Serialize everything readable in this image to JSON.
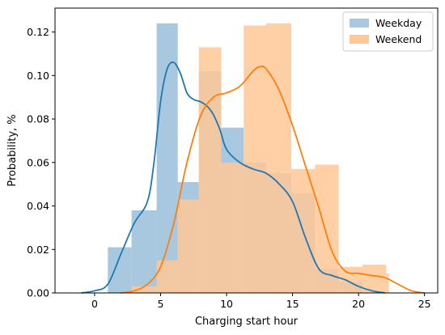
{
  "chart_data": {
    "type": "histogram+kde",
    "title": "",
    "xlabel": "Charging start hour",
    "ylabel": "Probability, %",
    "xlim": [
      -3,
      26
    ],
    "ylim": [
      0,
      0.131
    ],
    "xticks": [
      0,
      5,
      10,
      15,
      20,
      25
    ],
    "yticks": [
      0.0,
      0.02,
      0.04,
      0.06,
      0.08,
      0.1,
      0.12
    ],
    "legend_position": "top-right",
    "series": [
      {
        "name": "Weekday",
        "bar_color": "#a8c8e0",
        "line_color": "#1f77b4",
        "bins": [
          {
            "x0": 1.0,
            "x1": 2.8,
            "value": 0.021
          },
          {
            "x0": 2.8,
            "x1": 4.7,
            "value": 0.038
          },
          {
            "x0": 4.7,
            "x1": 6.3,
            "value": 0.124
          },
          {
            "x0": 6.3,
            "x1": 7.9,
            "value": 0.051
          },
          {
            "x0": 7.9,
            "x1": 9.6,
            "value": 0.102
          },
          {
            "x0": 9.6,
            "x1": 11.3,
            "value": 0.076
          },
          {
            "x0": 11.3,
            "x1": 13.0,
            "value": 0.06
          },
          {
            "x0": 13.0,
            "x1": 14.9,
            "value": 0.055
          },
          {
            "x0": 14.9,
            "x1": 16.7,
            "value": 0.046
          },
          {
            "x0": 16.7,
            "x1": 18.5,
            "value": 0.011
          },
          {
            "x0": 18.5,
            "x1": 20.3,
            "value": 0.005
          }
        ],
        "kde": [
          [
            -1.0,
            0.0
          ],
          [
            0.0,
            0.001
          ],
          [
            1.0,
            0.004
          ],
          [
            2.0,
            0.018
          ],
          [
            3.0,
            0.032
          ],
          [
            4.0,
            0.042
          ],
          [
            4.5,
            0.06
          ],
          [
            5.0,
            0.088
          ],
          [
            5.5,
            0.103
          ],
          [
            6.0,
            0.106
          ],
          [
            6.5,
            0.101
          ],
          [
            7.0,
            0.092
          ],
          [
            7.5,
            0.089
          ],
          [
            8.0,
            0.088
          ],
          [
            8.5,
            0.086
          ],
          [
            9.0,
            0.082
          ],
          [
            9.5,
            0.075
          ],
          [
            10.0,
            0.066
          ],
          [
            11.0,
            0.06
          ],
          [
            12.0,
            0.057
          ],
          [
            13.0,
            0.055
          ],
          [
            14.0,
            0.05
          ],
          [
            15.0,
            0.042
          ],
          [
            16.0,
            0.025
          ],
          [
            17.0,
            0.011
          ],
          [
            18.0,
            0.008
          ],
          [
            19.0,
            0.006
          ],
          [
            20.0,
            0.003
          ],
          [
            21.0,
            0.001
          ],
          [
            22.0,
            0.0
          ]
        ]
      },
      {
        "name": "Weekend",
        "bar_color": "#ffc896",
        "line_color": "#ff7f0e",
        "bins": [
          {
            "x0": 2.8,
            "x1": 4.7,
            "value": 0.003
          },
          {
            "x0": 4.7,
            "x1": 6.3,
            "value": 0.015
          },
          {
            "x0": 6.3,
            "x1": 7.9,
            "value": 0.043
          },
          {
            "x0": 7.9,
            "x1": 9.6,
            "value": 0.113
          },
          {
            "x0": 9.6,
            "x1": 11.3,
            "value": 0.06
          },
          {
            "x0": 11.3,
            "x1": 13.0,
            "value": 0.123
          },
          {
            "x0": 13.0,
            "x1": 14.9,
            "value": 0.124
          },
          {
            "x0": 14.9,
            "x1": 16.7,
            "value": 0.057
          },
          {
            "x0": 16.7,
            "x1": 18.5,
            "value": 0.059
          },
          {
            "x0": 18.5,
            "x1": 20.3,
            "value": 0.012
          },
          {
            "x0": 20.3,
            "x1": 22.1,
            "value": 0.013
          },
          {
            "x0": 22.1,
            "x1": 22.3,
            "value": 0.009
          }
        ],
        "kde": [
          [
            2.0,
            0.0
          ],
          [
            3.0,
            0.001
          ],
          [
            4.0,
            0.004
          ],
          [
            5.0,
            0.012
          ],
          [
            6.0,
            0.032
          ],
          [
            7.0,
            0.06
          ],
          [
            8.0,
            0.081
          ],
          [
            9.0,
            0.09
          ],
          [
            10.0,
            0.092
          ],
          [
            11.0,
            0.095
          ],
          [
            12.0,
            0.102
          ],
          [
            12.5,
            0.104
          ],
          [
            13.0,
            0.103
          ],
          [
            14.0,
            0.093
          ],
          [
            15.0,
            0.077
          ],
          [
            16.0,
            0.058
          ],
          [
            17.0,
            0.039
          ],
          [
            18.0,
            0.019
          ],
          [
            19.0,
            0.01
          ],
          [
            20.0,
            0.009
          ],
          [
            21.0,
            0.008
          ],
          [
            22.0,
            0.007
          ],
          [
            23.0,
            0.004
          ],
          [
            24.0,
            0.001
          ],
          [
            25.0,
            0.0
          ]
        ]
      }
    ]
  }
}
